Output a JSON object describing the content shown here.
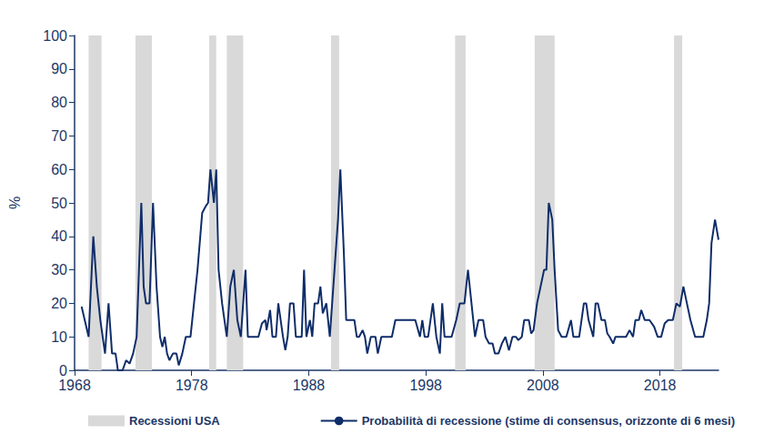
{
  "chart_data": {
    "type": "line",
    "ylabel": "%",
    "xlim": [
      1968,
      2023
    ],
    "xticks": [
      1968,
      1978,
      1988,
      1998,
      2008,
      2018
    ],
    "ylim": [
      0,
      100
    ],
    "yticks": [
      0,
      10,
      20,
      30,
      40,
      50,
      60,
      70,
      80,
      90,
      100
    ],
    "grid": false,
    "legend": "bottom",
    "x": [
      1968.6,
      1969.2,
      1969.6,
      1969.9,
      1970.2,
      1970.6,
      1970.9,
      1971.2,
      1971.5,
      1971.7,
      1972.1,
      1972.4,
      1972.7,
      1973.0,
      1973.3,
      1973.7,
      1973.9,
      1974.1,
      1974.4,
      1974.7,
      1975.0,
      1975.3,
      1975.5,
      1975.7,
      1975.9,
      1976.1,
      1976.4,
      1976.7,
      1976.9,
      1977.2,
      1977.5,
      1977.9,
      1978.2,
      1978.5,
      1978.9,
      1979.2,
      1979.4,
      1979.6,
      1979.9,
      1980.1,
      1980.3,
      1980.6,
      1981.0,
      1981.3,
      1981.6,
      1981.9,
      1982.2,
      1982.6,
      1982.8,
      1983.3,
      1983.7,
      1984.0,
      1984.3,
      1984.4,
      1984.7,
      1984.9,
      1985.2,
      1985.4,
      1985.8,
      1986.0,
      1986.2,
      1986.4,
      1986.7,
      1986.9,
      1987.4,
      1987.6,
      1987.8,
      1988.1,
      1988.3,
      1988.5,
      1988.8,
      1989.0,
      1989.2,
      1989.5,
      1989.8,
      1990.2,
      1990.5,
      1990.7,
      1991.0,
      1991.2,
      1991.6,
      1991.9,
      1992.1,
      1992.3,
      1992.6,
      1992.8,
      1993.0,
      1993.3,
      1993.7,
      1993.9,
      1994.2,
      1994.7,
      1995.1,
      1995.4,
      1996.1,
      1996.7,
      1997.1,
      1997.5,
      1997.7,
      1997.9,
      1998.2,
      1998.6,
      1998.9,
      1999.2,
      1999.4,
      1999.6,
      1999.9,
      2000.2,
      2000.6,
      2000.9,
      2001.3,
      2001.6,
      2001.9,
      2002.2,
      2002.5,
      2002.9,
      2003.1,
      2003.4,
      2003.7,
      2003.9,
      2004.2,
      2004.5,
      2004.8,
      2005.1,
      2005.4,
      2005.7,
      2005.9,
      2006.2,
      2006.4,
      2006.8,
      2007.0,
      2007.2,
      2007.5,
      2007.8,
      2008.1,
      2008.3,
      2008.5,
      2008.8,
      2009.0,
      2009.3,
      2009.6,
      2010.0,
      2010.4,
      2010.6,
      2011.1,
      2011.5,
      2011.7,
      2011.9,
      2012.3,
      2012.5,
      2012.7,
      2013.0,
      2013.3,
      2013.5,
      2013.7,
      2014.0,
      2014.2,
      2014.7,
      2015.1,
      2015.4,
      2015.7,
      2015.9,
      2016.2,
      2016.4,
      2016.7,
      2017.1,
      2017.5,
      2017.8,
      2018.1,
      2018.4,
      2018.7,
      2019.1,
      2019.4,
      2019.7,
      2020.0,
      2020.3,
      2020.6,
      2021.0,
      2021.3,
      2021.7,
      2022.0,
      2022.2,
      2022.4,
      2022.7,
      2023.0
    ],
    "series": [
      {
        "name": "Probabilità di recessione (stime di consensus, orizzonte di 6 mesi)",
        "color": "#0f2d69",
        "values": [
          19,
          10,
          40,
          25,
          15,
          5,
          20,
          5,
          5,
          0,
          0,
          3,
          2,
          5,
          10,
          50,
          25,
          20,
          20,
          50,
          25,
          10,
          7,
          10,
          5,
          3,
          5,
          5,
          1.5,
          5,
          10,
          10,
          20,
          30,
          47,
          49,
          50,
          60,
          50,
          60,
          30,
          20,
          10,
          25,
          30,
          15,
          10,
          30,
          10,
          10,
          10,
          14,
          15,
          12,
          18,
          10,
          10,
          20,
          10,
          6,
          10,
          20,
          20,
          10,
          10,
          30,
          10,
          15,
          10,
          20,
          20,
          25,
          17,
          20,
          10,
          30,
          45,
          60,
          35,
          15,
          15,
          15,
          10,
          10,
          12,
          10,
          5,
          10,
          10,
          5,
          10,
          10,
          10,
          15,
          15,
          15,
          15,
          10,
          15,
          10,
          10,
          20,
          10,
          5,
          20,
          10,
          10,
          10,
          15,
          20,
          20,
          30,
          20,
          10,
          15,
          15,
          10,
          8,
          8,
          5,
          5,
          8,
          10,
          6,
          10,
          10,
          9,
          10,
          15,
          15,
          11,
          12,
          20,
          25,
          30,
          30,
          50,
          45,
          30,
          12,
          10,
          10,
          15,
          10,
          10,
          20,
          20,
          15,
          10,
          20,
          20,
          15,
          15,
          11,
          10,
          8,
          10,
          10,
          10,
          12,
          10,
          15,
          15,
          18,
          15,
          15,
          13,
          10,
          10,
          14,
          15,
          15,
          20,
          19,
          25,
          20,
          15,
          10,
          10,
          10,
          15,
          20,
          38,
          45,
          39
        ]
      }
    ],
    "recessions": {
      "name": "Recessioni USA",
      "color": "#d9d9d9",
      "ranges": [
        [
          1969.2,
          1970.3
        ],
        [
          1973.2,
          1974.6
        ],
        [
          1979.5,
          1980.1
        ],
        [
          1981.0,
          1982.4
        ],
        [
          1989.9,
          1990.6
        ],
        [
          2000.5,
          2001.4
        ],
        [
          2007.3,
          2009.0
        ],
        [
          2019.2,
          2019.9
        ]
      ]
    }
  }
}
